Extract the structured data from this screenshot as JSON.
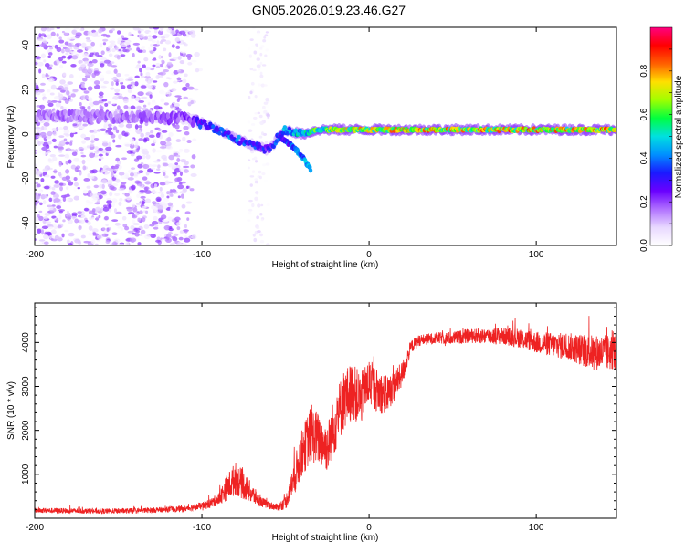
{
  "figure_title": "GN05.2026.019.23.46.G27",
  "colors": {
    "snr_line": "#ee2222",
    "colormap": [
      "#ffffff",
      "#e8d8ff",
      "#b070ff",
      "#6a00ff",
      "#1a1aff",
      "#0090ff",
      "#00e0e0",
      "#00ff40",
      "#a0ff00",
      "#ffe000",
      "#ff6000",
      "#ff0000",
      "#ff0080"
    ]
  },
  "chart_data": [
    {
      "type": "heatmap",
      "name": "spectrogram",
      "title": "GN05.2026.019.23.46.G27",
      "xlabel": "Height of straight line (km)",
      "ylabel": "Frequency (Hz)",
      "xlim": [
        -200,
        148
      ],
      "ylim": [
        -50,
        48
      ],
      "xticks": [
        -200,
        -100,
        0,
        100
      ],
      "xtick_labels": [
        "-200",
        "-100",
        "0",
        "100"
      ],
      "yticks": [
        -40,
        -20,
        0,
        20,
        40
      ],
      "ytick_labels": [
        "-40",
        "-20",
        "0",
        "20",
        "40"
      ],
      "colorbar": {
        "label": "Normalized spectral amplitude",
        "range": [
          0,
          1
        ],
        "ticks": [
          0,
          0.2,
          0.4,
          0.6,
          0.8
        ],
        "tick_labels": [
          "0.0",
          "0.2",
          "0.4",
          "0.6",
          "0.8"
        ]
      },
      "ridge": {
        "x": [
          -200,
          -150,
          -110,
          -100,
          -90,
          -80,
          -70,
          -60,
          -50,
          -40,
          -35,
          -30,
          -20,
          0,
          50,
          100,
          148
        ],
        "freq": [
          8,
          8,
          7,
          5,
          2,
          -2,
          -5,
          -7,
          2,
          0,
          1,
          2,
          2,
          2,
          2,
          2,
          2
        ],
        "amplitude": [
          0.2,
          0.2,
          0.25,
          0.4,
          0.45,
          0.45,
          0.4,
          0.35,
          0.5,
          0.6,
          0.65,
          0.7,
          0.8,
          0.85,
          0.9,
          0.9,
          0.9
        ]
      },
      "branch": {
        "x": [
          -55,
          -50,
          -45,
          -40,
          -35
        ],
        "freq": [
          0,
          -3,
          -6,
          -10,
          -16
        ],
        "amplitude": [
          0.4,
          0.4,
          0.45,
          0.5,
          0.5
        ]
      },
      "noise_region_x": [
        -200,
        -100
      ],
      "noise_bands_x": [
        [
          -72,
          -60
        ]
      ]
    },
    {
      "type": "line",
      "name": "snr",
      "xlabel": "Height of straight line (km)",
      "ylabel": "SNR (10 * v/v)",
      "xlim": [
        -200,
        148
      ],
      "ylim": [
        0,
        4900
      ],
      "xticks": [
        -200,
        -100,
        0,
        100
      ],
      "xtick_labels": [
        "-200",
        "-100",
        "0",
        "100"
      ],
      "yticks": [
        1000,
        2000,
        3000,
        4000
      ],
      "ytick_labels": [
        "1000",
        "2000",
        "3000",
        "4000"
      ],
      "x": [
        -200,
        -180,
        -160,
        -140,
        -120,
        -110,
        -100,
        -95,
        -90,
        -85,
        -80,
        -75,
        -70,
        -65,
        -60,
        -55,
        -50,
        -45,
        -40,
        -35,
        -30,
        -25,
        -20,
        -15,
        -10,
        -5,
        0,
        5,
        10,
        15,
        20,
        25,
        30,
        40,
        50,
        60,
        70,
        80,
        90,
        100,
        110,
        120,
        130,
        140,
        148
      ],
      "y": [
        180,
        170,
        160,
        170,
        200,
        220,
        280,
        340,
        430,
        700,
        900,
        750,
        550,
        380,
        300,
        250,
        350,
        900,
        1500,
        1900,
        1800,
        1600,
        2200,
        2700,
        2900,
        2700,
        3100,
        2900,
        2800,
        3000,
        3300,
        3900,
        4050,
        4100,
        4100,
        4150,
        4150,
        4150,
        4100,
        4000,
        3950,
        3900,
        3800,
        3750,
        3800
      ],
      "noise_amplitude": [
        60,
        60,
        60,
        60,
        60,
        70,
        80,
        110,
        140,
        300,
        380,
        330,
        230,
        120,
        90,
        80,
        150,
        400,
        550,
        650,
        600,
        550,
        700,
        700,
        650,
        600,
        550,
        500,
        450,
        350,
        280,
        150,
        130,
        130,
        150,
        160,
        180,
        200,
        220,
        250,
        280,
        320,
        380,
        420,
        420
      ]
    }
  ]
}
